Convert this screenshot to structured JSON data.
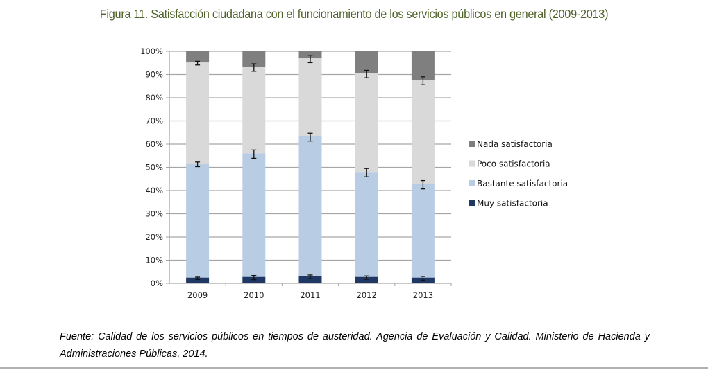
{
  "figure_title": "Figura 11. Satisfacción ciudadana con el funcionamiento de los servicios públicos en general (2009-2013)",
  "source_note": "Fuente: Calidad de los servicios públicos en tiempos de austeridad. Agencia de Evaluación y Calidad. Ministerio de Hacienda y Administraciones Públicas, 2014.",
  "chart_data": {
    "type": "bar",
    "stacked": true,
    "percent_stacked": true,
    "title": "Figura 11. Satisfacción ciudadana con el funcionamiento de los servicios públicos en general (2009-2013)",
    "xlabel": "",
    "ylabel": "",
    "categories": [
      "2009",
      "2010",
      "2011",
      "2012",
      "2013"
    ],
    "ylim": [
      0,
      100
    ],
    "yticks": [
      0,
      10,
      20,
      30,
      40,
      50,
      60,
      70,
      80,
      90,
      100
    ],
    "ytick_labels": [
      "0%",
      "10%",
      "20%",
      "30%",
      "40%",
      "50%",
      "60%",
      "70%",
      "80%",
      "90%",
      "100%"
    ],
    "grid": true,
    "legend_position": "right",
    "series": [
      {
        "name": "Muy satisfactoria",
        "color": "#1f3864",
        "values": [
          2.5,
          2.8,
          3.1,
          2.8,
          2.5
        ],
        "error": [
          0.5,
          0.9,
          0.8,
          0.7,
          0.8
        ]
      },
      {
        "name": "Bastante satisfactoria",
        "color": "#b8cce4",
        "values": [
          49.1,
          53.2,
          60.2,
          45.2,
          40.3
        ],
        "error": [
          1.0,
          1.8,
          1.7,
          1.8,
          1.8
        ]
      },
      {
        "name": "Poco satisfactoria",
        "color": "#d9d9d9",
        "values": [
          43.6,
          37.3,
          33.7,
          42.5,
          44.8
        ],
        "error": [
          0.8,
          1.6,
          1.6,
          1.6,
          1.7
        ]
      },
      {
        "name": "Nada satisfactoria",
        "color": "#7f7f7f",
        "values": [
          4.8,
          6.7,
          3.0,
          9.5,
          12.4
        ],
        "error": []
      }
    ],
    "legend": [
      "Nada satisfactoria",
      "Poco satisfactoria",
      "Bastante satisfactoria",
      "Muy satisfactoria"
    ]
  }
}
